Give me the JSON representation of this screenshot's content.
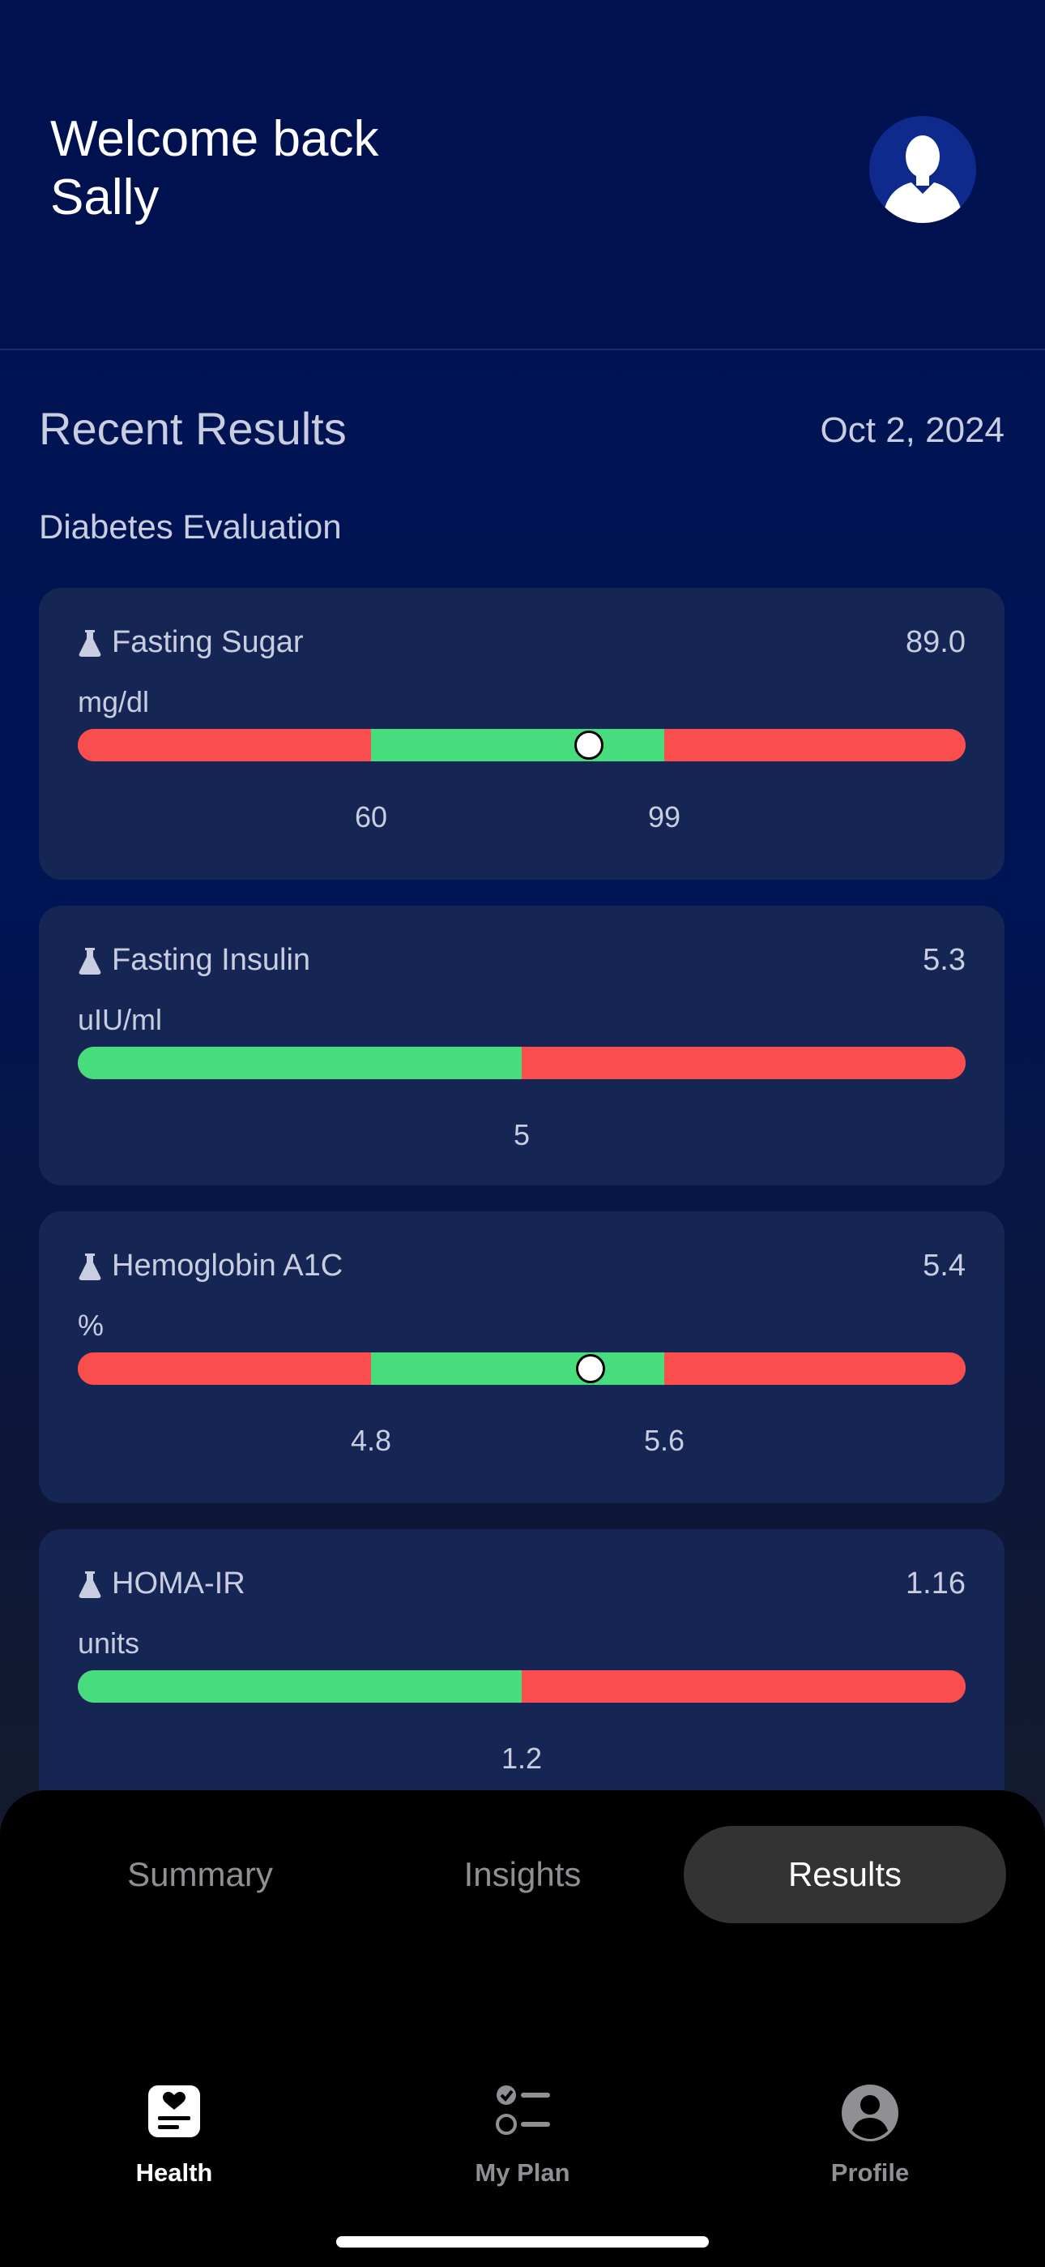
{
  "header": {
    "welcome_line1": "Welcome back",
    "welcome_line2": "Sally",
    "avatar_icon": "person-silhouette-icon"
  },
  "results": {
    "title": "Recent Results",
    "date": "Oct 2, 2024",
    "panel": "Diabetes Evaluation",
    "items": [
      {
        "name": "Fasting Sugar",
        "value": "89.0",
        "unit": "mg/dl",
        "icon": "flask-icon",
        "ticks": [
          "60",
          "99"
        ],
        "indicator_fraction": 0.577
      },
      {
        "name": "Fasting Insulin",
        "value": "5.3",
        "unit": "uIU/ml",
        "icon": "flask-icon",
        "ticks": [
          "5"
        ]
      },
      {
        "name": "Hemoglobin A1C",
        "value": "5.4",
        "unit": "%",
        "icon": "flask-icon",
        "ticks": [
          "4.8",
          "5.6"
        ],
        "indicator_fraction": 0.579
      },
      {
        "name": "HOMA-IR",
        "value": "1.16",
        "unit": "units",
        "icon": "flask-icon",
        "ticks": [
          "1.2"
        ]
      }
    ]
  },
  "segments": {
    "tabs": [
      "Summary",
      "Insights",
      "Results"
    ],
    "active": "Results"
  },
  "tabbar": {
    "items": [
      {
        "label": "Health",
        "icon": "heart-document-icon"
      },
      {
        "label": "My Plan",
        "icon": "checklist-icon"
      },
      {
        "label": "Profile",
        "icon": "user-circle-icon"
      }
    ],
    "active": "Health"
  },
  "colors": {
    "background": "#001150",
    "card": "#162654",
    "in_range": "#48dd7c",
    "out_of_range": "#fa4d4d"
  }
}
